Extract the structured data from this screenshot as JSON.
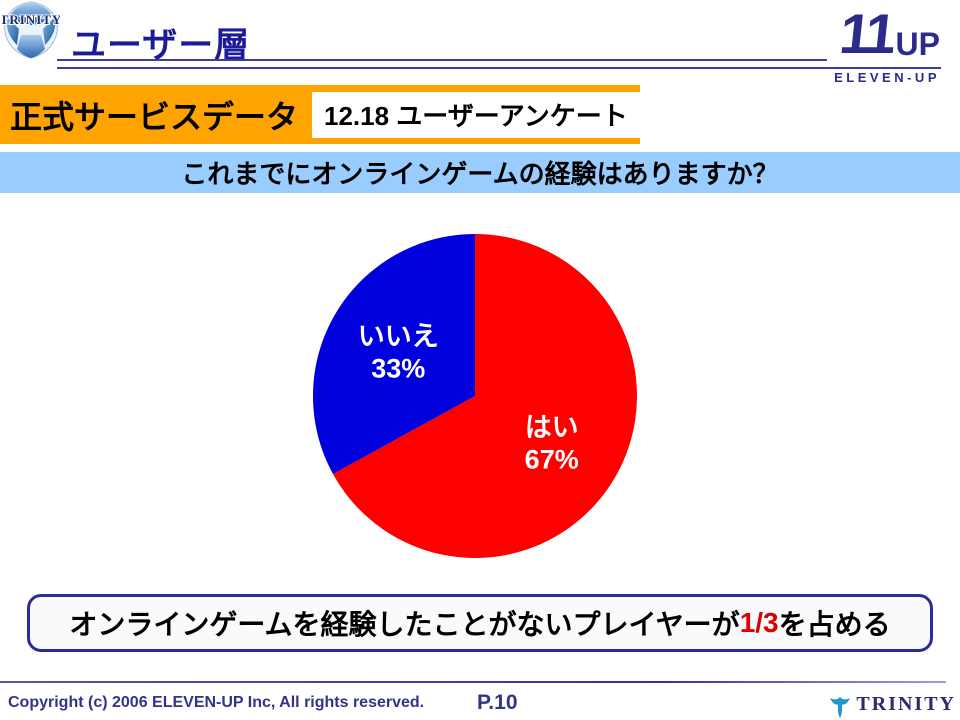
{
  "slide": {
    "title": "ユーザー層",
    "page_number": "P.10",
    "copyright": "Copyright (c) 2006 ELEVEN-UP Inc, All rights reserved."
  },
  "logos": {
    "trinity": "TRINITY",
    "elevenup_numeral": "11",
    "elevenup_up": "UP",
    "elevenup_caption": "ELEVEN-UP",
    "trinity_footer": "TRINITY"
  },
  "header": {
    "category_label": "正式サービスデータ",
    "survey_tag": "12.18 ユーザーアンケート"
  },
  "question_banner": "これまでにオンラインゲームの経験はありますか？",
  "conclusion": {
    "prefix": "オンラインゲームを経験したことがないプレイヤーが",
    "highlight": "1/3",
    "suffix": "を占める"
  },
  "chart_data": {
    "type": "pie",
    "labels": [
      "はい",
      "いいえ"
    ],
    "values": [
      67,
      33
    ],
    "value_suffix": "%",
    "colors": [
      "#ff0000",
      "#0000dd"
    ],
    "label_color": "#ffffff",
    "start_angle_deg": -90,
    "direction": "clockwise",
    "legend": "none",
    "radius_px": 162,
    "label_radius_factor": 0.55
  },
  "colors": {
    "title_navy": "#1c1c99",
    "logo_navy": "#2b2b8c",
    "header_orange": "#ffa300",
    "banner_blue": "#99ccff",
    "conclusion_highlight": "#dd0000",
    "footer_navy": "#333388"
  }
}
